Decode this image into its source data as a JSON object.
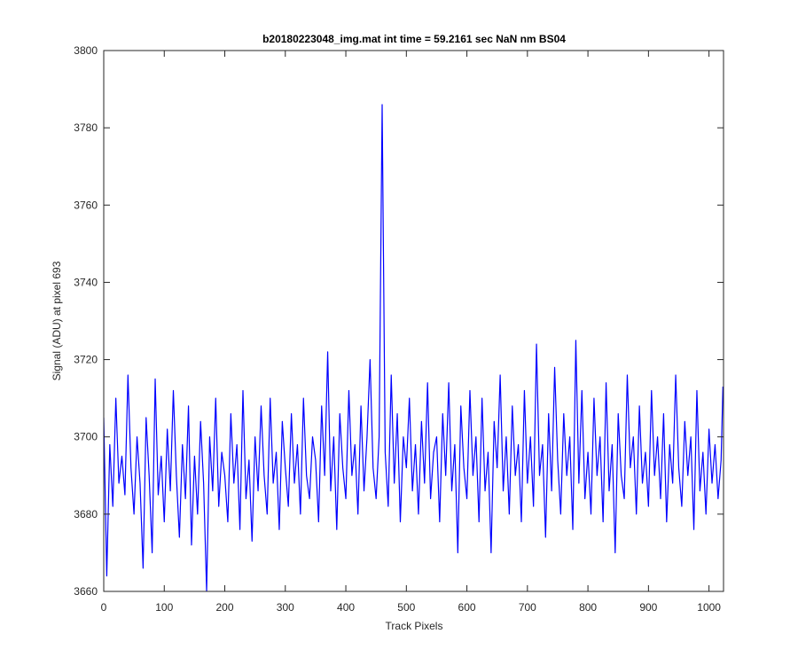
{
  "chart_data": {
    "type": "line",
    "title": "b20180223048_img.mat int time = 59.2161 sec  NaN nm BS04",
    "x_label": "Track Pixels",
    "y_label": "Signal (ADU) at pixel 693",
    "xlim": [
      0,
      1024
    ],
    "ylim": [
      3660,
      3800
    ],
    "xticks": [
      0,
      100,
      200,
      300,
      400,
      500,
      600,
      700,
      800,
      900,
      1000
    ],
    "yticks": [
      3660,
      3680,
      3700,
      3720,
      3740,
      3760,
      3780,
      3800
    ],
    "grid": false,
    "series": [
      {
        "color": "#0000ff",
        "x": [
          0,
          5,
          10,
          15,
          20,
          25,
          30,
          35,
          40,
          45,
          50,
          55,
          60,
          65,
          70,
          75,
          80,
          85,
          90,
          95,
          100,
          105,
          110,
          115,
          120,
          125,
          130,
          135,
          140,
          145,
          150,
          155,
          160,
          165,
          170,
          175,
          180,
          185,
          190,
          195,
          200,
          205,
          210,
          215,
          220,
          225,
          230,
          235,
          240,
          245,
          250,
          255,
          260,
          265,
          270,
          275,
          280,
          285,
          290,
          295,
          300,
          305,
          310,
          315,
          320,
          325,
          330,
          335,
          340,
          345,
          350,
          355,
          360,
          365,
          370,
          375,
          380,
          385,
          390,
          395,
          400,
          405,
          410,
          415,
          420,
          425,
          430,
          435,
          440,
          445,
          450,
          455,
          460,
          465,
          470,
          475,
          480,
          485,
          490,
          495,
          500,
          505,
          510,
          515,
          520,
          525,
          530,
          535,
          540,
          545,
          550,
          555,
          560,
          565,
          570,
          575,
          580,
          585,
          590,
          595,
          600,
          605,
          610,
          615,
          620,
          625,
          630,
          635,
          640,
          645,
          650,
          655,
          660,
          665,
          670,
          675,
          680,
          685,
          690,
          695,
          700,
          705,
          710,
          715,
          720,
          725,
          730,
          735,
          740,
          745,
          750,
          755,
          760,
          765,
          770,
          775,
          780,
          785,
          790,
          795,
          800,
          805,
          810,
          815,
          820,
          825,
          830,
          835,
          840,
          845,
          850,
          855,
          860,
          865,
          870,
          875,
          880,
          885,
          890,
          895,
          900,
          905,
          910,
          915,
          920,
          925,
          930,
          935,
          940,
          945,
          950,
          955,
          960,
          965,
          970,
          975,
          980,
          985,
          990,
          995,
          1000,
          1005,
          1010,
          1015,
          1020,
          1023
        ],
        "values": [
          3705,
          3664,
          3698,
          3682,
          3710,
          3688,
          3695,
          3685,
          3716,
          3692,
          3680,
          3700,
          3688,
          3666,
          3705,
          3690,
          3670,
          3715,
          3685,
          3695,
          3678,
          3702,
          3686,
          3712,
          3690,
          3674,
          3698,
          3684,
          3708,
          3672,
          3695,
          3680,
          3704,
          3688,
          3660,
          3700,
          3686,
          3710,
          3682,
          3696,
          3690,
          3678,
          3706,
          3688,
          3698,
          3676,
          3712,
          3684,
          3694,
          3673,
          3700,
          3686,
          3708,
          3690,
          3680,
          3710,
          3688,
          3696,
          3676,
          3704,
          3692,
          3682,
          3706,
          3688,
          3698,
          3680,
          3710,
          3690,
          3684,
          3700,
          3694,
          3678,
          3708,
          3690,
          3722,
          3686,
          3700,
          3676,
          3706,
          3692,
          3684,
          3712,
          3690,
          3698,
          3680,
          3708,
          3686,
          3700,
          3720,
          3692,
          3684,
          3700,
          3786,
          3696,
          3682,
          3716,
          3688,
          3706,
          3678,
          3700,
          3692,
          3710,
          3686,
          3698,
          3680,
          3704,
          3688,
          3714,
          3684,
          3696,
          3700,
          3678,
          3706,
          3690,
          3714,
          3686,
          3698,
          3670,
          3708,
          3692,
          3684,
          3712,
          3690,
          3700,
          3678,
          3710,
          3686,
          3696,
          3670,
          3704,
          3692,
          3716,
          3686,
          3700,
          3680,
          3708,
          3690,
          3698,
          3678,
          3712,
          3688,
          3700,
          3682,
          3724,
          3690,
          3698,
          3674,
          3706,
          3686,
          3718,
          3694,
          3680,
          3706,
          3690,
          3700,
          3676,
          3725,
          3688,
          3712,
          3684,
          3696,
          3680,
          3710,
          3690,
          3700,
          3678,
          3714,
          3686,
          3698,
          3670,
          3706,
          3690,
          3684,
          3716,
          3692,
          3700,
          3680,
          3708,
          3688,
          3696,
          3682,
          3712,
          3690,
          3700,
          3684,
          3706,
          3678,
          3698,
          3688,
          3716,
          3692,
          3682,
          3704,
          3690,
          3700,
          3676,
          3712,
          3686,
          3696,
          3680,
          3702,
          3688,
          3698,
          3684,
          3694,
          3713
        ]
      }
    ]
  }
}
